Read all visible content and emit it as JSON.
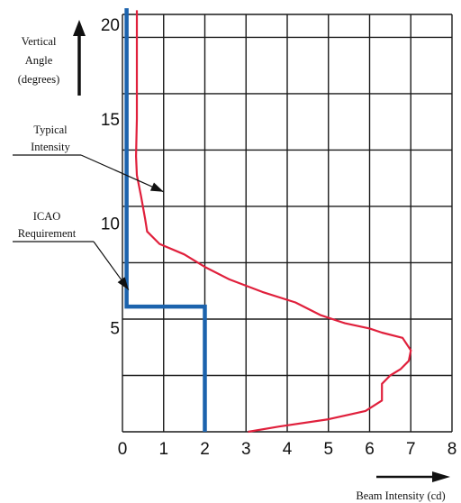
{
  "chart_data": {
    "type": "line",
    "title": "",
    "xlabel": "Beam Intensity (cd)",
    "ylabel": [
      "Vertical",
      "Angle",
      "(degrees)"
    ],
    "xlim": [
      0,
      8
    ],
    "ylim": [
      0,
      20
    ],
    "x_ticks": [
      "0",
      "1",
      "2",
      "3",
      "4",
      "5",
      "6",
      "7",
      "8"
    ],
    "y_ticks": [
      {
        "label": "5",
        "value": 5
      },
      {
        "label": "10",
        "value": 10
      },
      {
        "label": "15",
        "value": 15
      },
      {
        "label": "20",
        "value": 20
      }
    ],
    "grid": true,
    "gridline_angles": [
      2.7,
      5.4,
      8.1,
      10.8,
      13.5,
      16.2,
      18.9
    ],
    "series": [
      {
        "name": "Typical Intensity",
        "color": "#e0203c",
        "points": [
          [
            0.35,
            20.2
          ],
          [
            0.35,
            17.5
          ],
          [
            0.35,
            15.0
          ],
          [
            0.33,
            13.2
          ],
          [
            0.35,
            12.3
          ],
          [
            0.45,
            11.3
          ],
          [
            0.55,
            10.2
          ],
          [
            0.6,
            9.6
          ],
          [
            0.9,
            9.0
          ],
          [
            1.5,
            8.5
          ],
          [
            2.0,
            7.9
          ],
          [
            2.6,
            7.3
          ],
          [
            3.4,
            6.7
          ],
          [
            4.2,
            6.2
          ],
          [
            4.8,
            5.6
          ],
          [
            5.4,
            5.2
          ],
          [
            6.0,
            4.95
          ],
          [
            6.3,
            4.75
          ],
          [
            6.8,
            4.5
          ],
          [
            7.0,
            3.9
          ],
          [
            6.95,
            3.4
          ],
          [
            6.75,
            3.0
          ],
          [
            6.5,
            2.7
          ],
          [
            6.3,
            2.3
          ],
          [
            6.3,
            1.5
          ],
          [
            5.9,
            1.0
          ],
          [
            5.0,
            0.6
          ],
          [
            3.8,
            0.25
          ],
          [
            3.05,
            0.0
          ]
        ]
      },
      {
        "name": "ICAO Requirement",
        "color": "#1c63ad",
        "points": [
          [
            0.1,
            20.3
          ],
          [
            0.1,
            6.0
          ],
          [
            2.0,
            6.0
          ],
          [
            2.0,
            0.0
          ]
        ]
      }
    ],
    "annotations": [
      {
        "lines": [
          "Typical",
          "Intensity"
        ],
        "arrow_to": [
          1.0,
          11.5
        ]
      },
      {
        "lines": [
          "ICAO",
          "Requirement"
        ],
        "arrow_to": [
          0.15,
          6.8
        ]
      }
    ]
  }
}
